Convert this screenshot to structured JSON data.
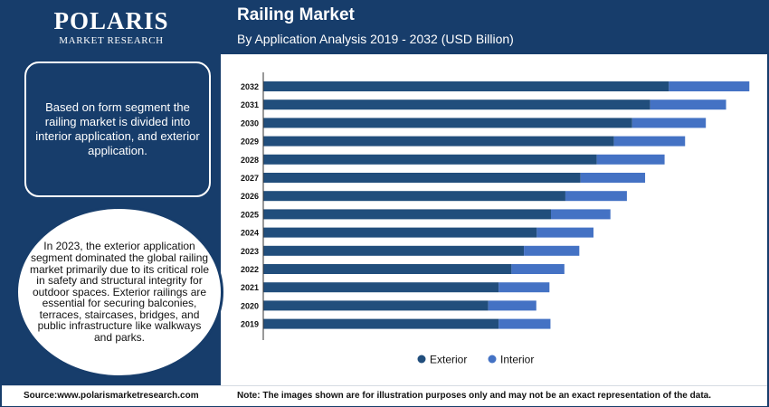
{
  "brand": {
    "name": "POLARIS",
    "tagline": "MARKET RESEARCH"
  },
  "header": {
    "title": "Railing Market",
    "subtitle": "By Application Analysis 2019 - 2032 (USD Billion)"
  },
  "sidebar": {
    "summary": "Based on form segment the railing market is divided into interior application, and exterior application.",
    "highlight": "In 2023, the exterior application segment dominated the global railing market primarily due to its critical role in safety and structural integrity for outdoor spaces. Exterior railings are essential for securing balconies, terraces, staircases, bridges, and public infrastructure like walkways and parks."
  },
  "footer": {
    "source": "Source:www.polarismarketresearch.com",
    "note": "Note: The images shown are for illustration purposes only and may not be an exact representation of the data."
  },
  "chart_data": {
    "type": "bar",
    "orientation": "horizontal",
    "stacked": true,
    "categories": [
      "2032",
      "2031",
      "2030",
      "2029",
      "2028",
      "2027",
      "2026",
      "2025",
      "2024",
      "2023",
      "2022",
      "2021",
      "2020",
      "2019"
    ],
    "series": [
      {
        "name": "Exterior",
        "color": "#214e7c",
        "values": [
          160.3,
          152.9,
          145.8,
          138.6,
          131.8,
          125.4,
          119.4,
          113.7,
          108.1,
          103.0,
          98.1,
          93.0,
          88.9,
          93.0
        ]
      },
      {
        "name": "Interior",
        "color": "#4472c4",
        "values": [
          31.8,
          30.0,
          29.1,
          28.1,
          26.8,
          25.5,
          24.3,
          23.5,
          22.4,
          21.9,
          20.9,
          20.1,
          19.0,
          20.5
        ]
      }
    ],
    "xlim": [
      0,
      192
    ],
    "grid": false,
    "legend_position": "bottom"
  }
}
